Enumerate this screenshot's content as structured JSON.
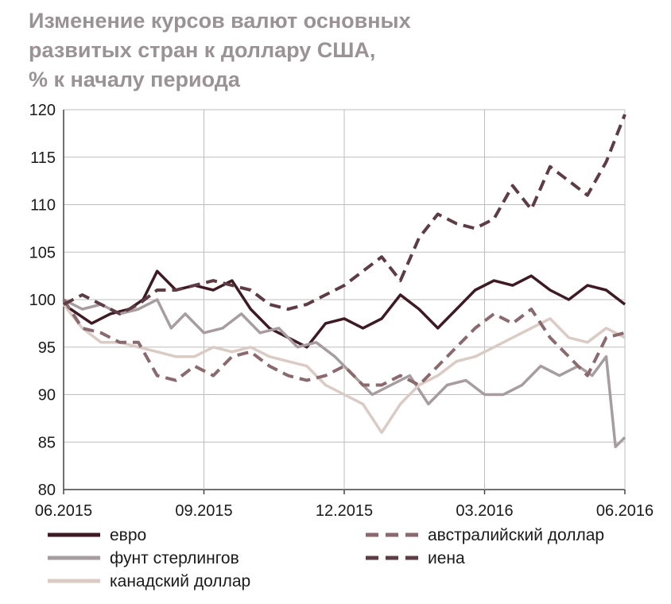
{
  "chart_data": {
    "type": "line",
    "title_lines": [
      "Изменение курсов валют основных",
      "развитых стран к доллару США,",
      "% к началу периода"
    ],
    "x_ticks": [
      "06.2015",
      "09.2015",
      "12.2015",
      "03.2016",
      "06.2016"
    ],
    "y_ticks": [
      80,
      85,
      90,
      95,
      100,
      105,
      110,
      115,
      120
    ],
    "ylim": [
      80,
      120
    ],
    "xlim": [
      0,
      12
    ],
    "grid": true,
    "legend_position": "bottom",
    "series": [
      {
        "name": "евро",
        "color": "#3e1a24",
        "dash": "solid",
        "x": [
          0,
          0.3,
          0.6,
          1.0,
          1.4,
          1.7,
          2.0,
          2.4,
          2.8,
          3.2,
          3.6,
          4.0,
          4.4,
          4.8,
          5.2,
          5.6,
          6.0,
          6.4,
          6.8,
          7.2,
          7.6,
          8.0,
          8.4,
          8.8,
          9.2,
          9.6,
          10.0,
          10.4,
          10.8,
          11.2,
          11.6,
          12.0
        ],
        "y": [
          99.5,
          98.5,
          97.5,
          98.5,
          99,
          100,
          103,
          101,
          101.5,
          101,
          102,
          99,
          97,
          96,
          95,
          97.5,
          98,
          97,
          98,
          100.5,
          99,
          97,
          99,
          101,
          102,
          101.5,
          102.5,
          101,
          100,
          101.5,
          101,
          99.5
        ]
      },
      {
        "name": "фунт стерлингов",
        "color": "#a79da1",
        "dash": "solid",
        "x": [
          0,
          0.4,
          0.8,
          1.2,
          1.6,
          2.0,
          2.3,
          2.6,
          3.0,
          3.4,
          3.8,
          4.2,
          4.6,
          5.0,
          5.4,
          5.8,
          6.2,
          6.6,
          7.0,
          7.4,
          7.8,
          8.2,
          8.6,
          9.0,
          9.4,
          9.8,
          10.2,
          10.6,
          11.0,
          11.3,
          11.6,
          11.8,
          12.0
        ],
        "y": [
          100,
          99,
          99.5,
          98.5,
          99,
          100,
          97,
          98.5,
          96.5,
          97,
          98.5,
          96.5,
          97,
          95,
          95.5,
          94,
          92,
          90,
          91,
          92,
          89,
          91,
          91.5,
          90,
          90,
          91,
          93,
          92,
          93,
          92,
          94,
          84.5,
          85.5
        ]
      },
      {
        "name": "канадский доллар",
        "color": "#dacbc4",
        "dash": "solid",
        "x": [
          0,
          0.4,
          0.8,
          1.2,
          1.6,
          2.0,
          2.4,
          2.8,
          3.2,
          3.6,
          4.0,
          4.4,
          4.8,
          5.2,
          5.6,
          6.0,
          6.4,
          6.8,
          7.2,
          7.6,
          8.0,
          8.4,
          8.8,
          9.2,
          9.6,
          10.0,
          10.4,
          10.8,
          11.2,
          11.6,
          12.0
        ],
        "y": [
          99.5,
          97,
          95.5,
          95.5,
          95,
          94.5,
          94,
          94,
          95,
          94.5,
          95,
          94,
          93.5,
          93,
          91,
          90,
          89,
          86,
          89,
          91,
          92,
          93.5,
          94,
          95,
          96,
          97,
          98,
          96,
          95.5,
          97,
          96
        ]
      },
      {
        "name": "австралийский доллар",
        "color": "#8a6a6f",
        "dash": "dashed",
        "x": [
          0,
          0.4,
          0.8,
          1.2,
          1.6,
          2.0,
          2.4,
          2.8,
          3.2,
          3.6,
          4.0,
          4.4,
          4.8,
          5.2,
          5.6,
          6.0,
          6.4,
          6.8,
          7.2,
          7.6,
          8.0,
          8.4,
          8.8,
          9.2,
          9.6,
          10.0,
          10.4,
          10.8,
          11.2,
          11.6,
          12.0
        ],
        "y": [
          100,
          97,
          96.5,
          95.5,
          95.5,
          92,
          91.5,
          93,
          92,
          94,
          94.5,
          93,
          92,
          91.5,
          92,
          93,
          91,
          91,
          92,
          91,
          93,
          95,
          97,
          98.5,
          97.5,
          99,
          96,
          94,
          92,
          96,
          96.5
        ]
      },
      {
        "name": "иена",
        "color": "#5e3c45",
        "dash": "dashed",
        "x": [
          0,
          0.4,
          0.8,
          1.2,
          1.6,
          2.0,
          2.4,
          2.8,
          3.2,
          3.6,
          4.0,
          4.4,
          4.8,
          5.2,
          5.6,
          6.0,
          6.4,
          6.8,
          7.2,
          7.6,
          8.0,
          8.4,
          8.8,
          9.2,
          9.6,
          10.0,
          10.4,
          10.8,
          11.2,
          11.6,
          12.0
        ],
        "y": [
          99.5,
          100.5,
          99.5,
          98.5,
          99.5,
          101,
          101,
          101.5,
          102,
          101.5,
          101,
          99.5,
          99,
          99.5,
          100.5,
          101.5,
          103,
          104.5,
          102,
          106.5,
          109,
          108,
          107.5,
          108.5,
          112,
          109.5,
          114,
          112.5,
          111,
          114.5,
          119.5
        ]
      }
    ]
  }
}
